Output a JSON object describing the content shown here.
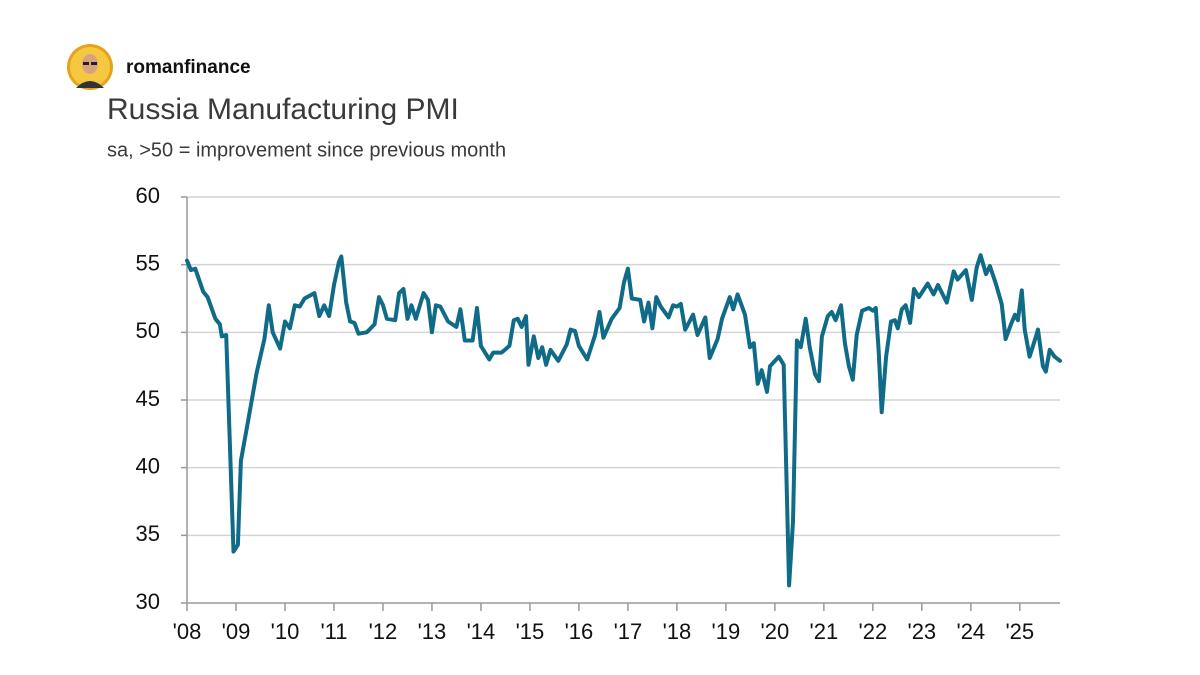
{
  "author": "romanfinance",
  "chart_data": {
    "type": "line",
    "title": "Russia Manufacturing PMI",
    "subtitle": "sa, >50 = improvement since previous month",
    "color": "#0f6b87",
    "x": [
      2008.0,
      2008.08,
      2008.17,
      2008.33,
      2008.42,
      2008.58,
      2008.67,
      2008.71,
      2008.8,
      2008.95,
      2009.04,
      2009.1,
      2009.25,
      2009.42,
      2009.58,
      2009.67,
      2009.75,
      2009.9,
      2010.0,
      2010.1,
      2010.2,
      2010.3,
      2010.4,
      2010.6,
      2010.7,
      2010.8,
      2010.9,
      2011.0,
      2011.1,
      2011.15,
      2011.25,
      2011.33,
      2011.42,
      2011.5,
      2011.67,
      2011.83,
      2011.92,
      2012.0,
      2012.08,
      2012.25,
      2012.33,
      2012.42,
      2012.5,
      2012.58,
      2012.67,
      2012.83,
      2012.92,
      2013.0,
      2013.08,
      2013.17,
      2013.33,
      2013.5,
      2013.58,
      2013.67,
      2013.83,
      2013.92,
      2014.0,
      2014.17,
      2014.25,
      2014.42,
      2014.58,
      2014.67,
      2014.75,
      2014.83,
      2014.92,
      2014.97,
      2015.08,
      2015.17,
      2015.25,
      2015.33,
      2015.42,
      2015.58,
      2015.75,
      2015.83,
      2015.92,
      2016.0,
      2016.17,
      2016.33,
      2016.42,
      2016.5,
      2016.67,
      2016.83,
      2016.92,
      2017.0,
      2017.08,
      2017.25,
      2017.33,
      2017.42,
      2017.5,
      2017.58,
      2017.67,
      2017.83,
      2017.92,
      2018.0,
      2018.08,
      2018.17,
      2018.33,
      2018.42,
      2018.58,
      2018.67,
      2018.83,
      2018.92,
      2019.08,
      2019.15,
      2019.24,
      2019.39,
      2019.49,
      2019.57,
      2019.65,
      2019.73,
      2019.84,
      2019.9,
      2020.08,
      2020.18,
      2020.29,
      2020.37,
      2020.45,
      2020.53,
      2020.63,
      2020.71,
      2020.82,
      2020.9,
      2020.96,
      2021.08,
      2021.16,
      2021.24,
      2021.35,
      2021.43,
      2021.51,
      2021.59,
      2021.67,
      2021.78,
      2021.92,
      2022.0,
      2022.06,
      2022.12,
      2022.18,
      2022.27,
      2022.37,
      2022.45,
      2022.51,
      2022.59,
      2022.67,
      2022.76,
      2022.84,
      2022.94,
      2023.12,
      2023.24,
      2023.33,
      2023.51,
      2023.65,
      2023.73,
      2023.9,
      2024.02,
      2024.12,
      2024.2,
      2024.31,
      2024.39,
      2024.51,
      2024.63,
      2024.71,
      2024.82,
      2024.9,
      2024.96,
      2025.04,
      2025.1,
      2025.2,
      2025.33,
      2025.37,
      2025.47,
      2025.53,
      2025.61,
      2025.71,
      2025.82
    ],
    "values": [
      55.3,
      54.6,
      54.7,
      53.0,
      52.6,
      51.0,
      50.6,
      49.7,
      49.8,
      33.8,
      34.3,
      40.5,
      43.5,
      47.0,
      49.5,
      52.0,
      50.0,
      48.8,
      50.8,
      50.3,
      52.0,
      51.9,
      52.5,
      52.9,
      51.2,
      52.0,
      51.2,
      53.5,
      55.2,
      55.6,
      52.2,
      50.8,
      50.7,
      49.9,
      50.0,
      50.6,
      52.6,
      52.0,
      51.0,
      50.9,
      52.9,
      53.2,
      51.0,
      52.0,
      51.0,
      52.9,
      52.4,
      50.0,
      52.0,
      51.9,
      50.8,
      50.4,
      51.7,
      49.4,
      49.4,
      51.8,
      49.0,
      48.0,
      48.5,
      48.5,
      49.0,
      50.9,
      51.0,
      50.4,
      51.2,
      47.6,
      49.7,
      48.1,
      48.9,
      47.6,
      48.7,
      47.9,
      49.1,
      50.2,
      50.1,
      49.0,
      48.0,
      49.8,
      51.5,
      49.6,
      51.0,
      51.8,
      53.7,
      54.7,
      52.5,
      52.4,
      50.8,
      52.2,
      50.3,
      52.6,
      51.9,
      51.1,
      52.0,
      51.9,
      52.1,
      50.2,
      51.3,
      49.8,
      51.1,
      48.1,
      49.5,
      51.0,
      52.6,
      51.7,
      52.8,
      51.3,
      48.9,
      49.2,
      46.2,
      47.2,
      45.6,
      47.5,
      48.2,
      47.6,
      31.3,
      36.0,
      49.4,
      48.9,
      51.0,
      48.9,
      46.9,
      46.4,
      49.7,
      51.2,
      51.5,
      50.9,
      52.0,
      49.2,
      47.5,
      46.5,
      49.8,
      51.6,
      51.8,
      51.6,
      51.8,
      48.6,
      44.1,
      48.2,
      50.8,
      50.9,
      50.3,
      51.7,
      52.0,
      50.7,
      53.2,
      52.6,
      53.6,
      52.8,
      53.5,
      52.2,
      54.5,
      53.9,
      54.6,
      52.4,
      54.8,
      55.7,
      54.3,
      54.9,
      53.6,
      52.1,
      49.5,
      50.6,
      51.3,
      50.9,
      53.1,
      50.2,
      48.2,
      49.7,
      50.2,
      47.5,
      47.1,
      48.7,
      48.2,
      47.9
    ],
    "xlim": [
      2008,
      2025.82
    ],
    "xticks": [
      {
        "value": 2008,
        "label": "'08"
      },
      {
        "value": 2009,
        "label": "'09"
      },
      {
        "value": 2010,
        "label": "'10"
      },
      {
        "value": 2011,
        "label": "'11"
      },
      {
        "value": 2012,
        "label": "'12"
      },
      {
        "value": 2013,
        "label": "'13"
      },
      {
        "value": 2014,
        "label": "'14"
      },
      {
        "value": 2015,
        "label": "'15"
      },
      {
        "value": 2016,
        "label": "'16"
      },
      {
        "value": 2017,
        "label": "'17"
      },
      {
        "value": 2018,
        "label": "'18"
      },
      {
        "value": 2019,
        "label": "'19"
      },
      {
        "value": 2020,
        "label": "'20"
      },
      {
        "value": 2021,
        "label": "'21"
      },
      {
        "value": 2022,
        "label": "'22"
      },
      {
        "value": 2023,
        "label": "'23"
      },
      {
        "value": 2024,
        "label": "'24"
      },
      {
        "value": 2025,
        "label": "'25"
      }
    ],
    "ylim": [
      30,
      60
    ],
    "yticks": [
      30,
      35,
      40,
      45,
      50,
      55,
      60
    ],
    "grid": true
  }
}
